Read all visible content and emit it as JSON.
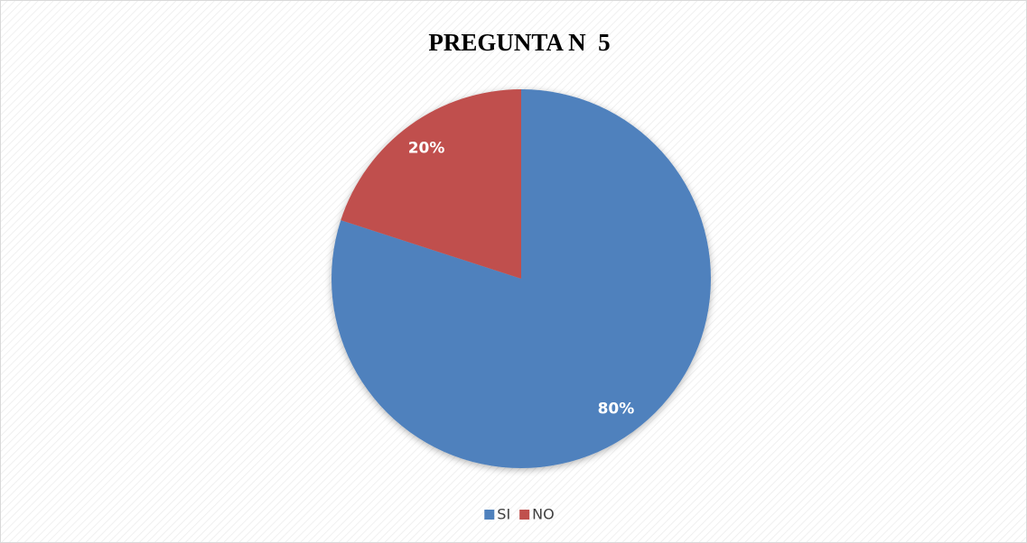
{
  "chart_data": {
    "type": "pie",
    "title": "PREGUNTA N  5",
    "categories": [
      "SI",
      "NO"
    ],
    "values": [
      80,
      20
    ],
    "value_labels": [
      "80%",
      "20%"
    ],
    "colors": [
      "#4f81bd",
      "#c0504d"
    ],
    "legend": "bottom"
  }
}
